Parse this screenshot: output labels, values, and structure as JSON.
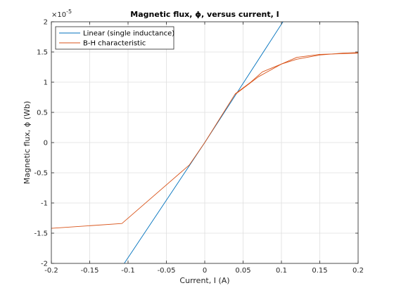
{
  "chart_data": {
    "type": "line",
    "title": "Magnetic flux, ϕ, versus current, I",
    "xlabel": "Current, I (A)",
    "ylabel": "Magnetic flux, ϕ (Wb)",
    "xlim": [
      -0.2,
      0.2
    ],
    "ylim": [
      -2.0,
      2.0
    ],
    "y_exponent_label": "×10",
    "y_exponent_power": "-5",
    "x_ticks": [
      -0.2,
      -0.15,
      -0.1,
      -0.05,
      0,
      0.05,
      0.1,
      0.15,
      0.2
    ],
    "x_tick_labels": [
      "-0.2",
      "-0.15",
      "-0.1",
      "-0.05",
      "0",
      "0.05",
      "0.1",
      "0.15",
      "0.2"
    ],
    "y_ticks": [
      -2,
      -1.5,
      -1,
      -0.5,
      0,
      0.5,
      1,
      1.5,
      2
    ],
    "y_tick_labels": [
      "-2",
      "-1.5",
      "-1",
      "-0.5",
      "0",
      "0.5",
      "1",
      "1.5",
      "2"
    ],
    "grid": true,
    "legend_position": "top-left",
    "series": [
      {
        "name": "Linear (single inductance)",
        "color": "#0072BD",
        "x": [
          -0.105,
          0.0,
          0.102
        ],
        "y": [
          -2.0,
          0.0,
          2.0
        ]
      },
      {
        "name": "B-H characteristic",
        "color": "#D95319",
        "x": [
          -0.2,
          -0.108,
          -0.02,
          0.0,
          0.04,
          0.06,
          0.075,
          0.1,
          0.12,
          0.15,
          0.18,
          0.2
        ],
        "y": [
          -1.42,
          -1.34,
          -0.37,
          0.0,
          0.81,
          1.0,
          1.17,
          1.3,
          1.38,
          1.45,
          1.48,
          1.49
        ]
      },
      {
        "name": "",
        "color": "#D95319",
        "x": [
          0.04,
          0.07,
          0.1,
          0.12,
          0.15,
          0.2
        ],
        "y": [
          0.8,
          1.09,
          1.3,
          1.41,
          1.46,
          1.48
        ]
      }
    ]
  }
}
